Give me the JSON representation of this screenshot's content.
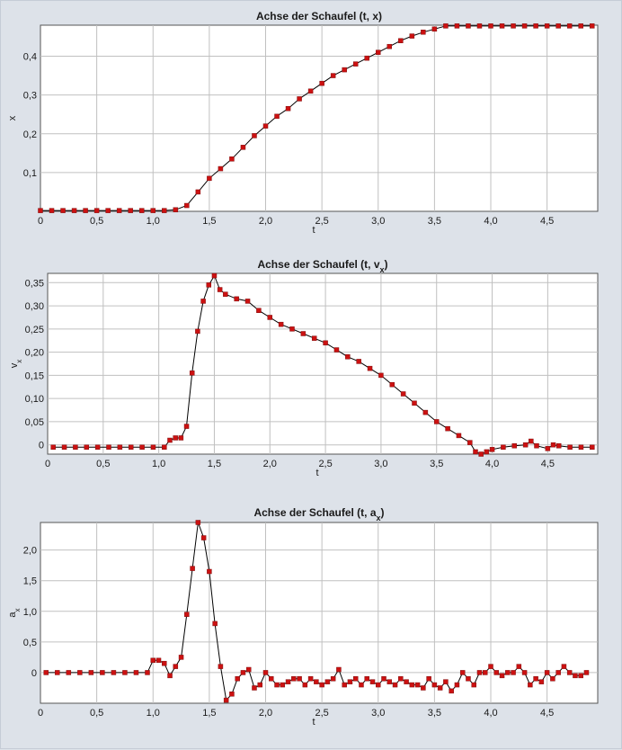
{
  "colors": {
    "background": "#dde2e9",
    "plot_background": "#ffffff",
    "grid": "#c0c0c0",
    "line": "#000000",
    "marker": "#cc1111"
  },
  "chart_data": [
    {
      "type": "line",
      "title": "Achse der Schaufel (t, x)",
      "xlabel": "t",
      "ylabel": "x",
      "xlim": [
        0,
        4.95
      ],
      "ylim": [
        0,
        0.48
      ],
      "xticks": [
        0,
        0.5,
        1.0,
        1.5,
        2.0,
        2.5,
        3.0,
        3.5,
        4.0,
        4.5
      ],
      "xtick_labels": [
        "0",
        "0,5",
        "1,0",
        "1,5",
        "2,0",
        "2,5",
        "3,0",
        "3,5",
        "4,0",
        "4,5"
      ],
      "yticks": [
        0.1,
        0.2,
        0.3,
        0.4
      ],
      "ytick_labels": [
        "0,1",
        "0,2",
        "0,3",
        "0,4"
      ],
      "grid": true,
      "x": [
        0,
        0.1,
        0.2,
        0.3,
        0.4,
        0.5,
        0.6,
        0.7,
        0.8,
        0.9,
        1.0,
        1.1,
        1.2,
        1.3,
        1.4,
        1.5,
        1.6,
        1.7,
        1.8,
        1.9,
        2.0,
        2.1,
        2.2,
        2.3,
        2.4,
        2.5,
        2.6,
        2.7,
        2.8,
        2.9,
        3.0,
        3.1,
        3.2,
        3.3,
        3.4,
        3.5,
        3.6,
        3.7,
        3.8,
        3.9,
        4.0,
        4.1,
        4.2,
        4.3,
        4.4,
        4.5,
        4.6,
        4.7,
        4.8,
        4.9
      ],
      "y": [
        0.002,
        0.002,
        0.002,
        0.002,
        0.002,
        0.002,
        0.002,
        0.002,
        0.002,
        0.002,
        0.002,
        0.002,
        0.004,
        0.015,
        0.05,
        0.085,
        0.11,
        0.135,
        0.165,
        0.195,
        0.22,
        0.245,
        0.265,
        0.29,
        0.31,
        0.33,
        0.35,
        0.365,
        0.38,
        0.395,
        0.41,
        0.425,
        0.44,
        0.452,
        0.462,
        0.47,
        0.478,
        0.478,
        0.478,
        0.478,
        0.478,
        0.478,
        0.478,
        0.478,
        0.478,
        0.478,
        0.478,
        0.478,
        0.478,
        0.478
      ]
    },
    {
      "type": "line",
      "title": "Achse der Schaufel (t, v",
      "title_sub": "x",
      "xlabel": "t",
      "ylabel": "v",
      "ylabel_sub": "x",
      "xlim": [
        0,
        4.95
      ],
      "ylim": [
        -0.02,
        0.37
      ],
      "xticks": [
        0,
        0.5,
        1.0,
        1.5,
        2.0,
        2.5,
        3.0,
        3.5,
        4.0,
        4.5
      ],
      "xtick_labels": [
        "0",
        "0,5",
        "1,0",
        "1,5",
        "2,0",
        "2,5",
        "3,0",
        "3,5",
        "4,0",
        "4,5"
      ],
      "yticks": [
        0,
        0.05,
        0.1,
        0.15,
        0.2,
        0.25,
        0.3,
        0.35
      ],
      "ytick_labels": [
        "0",
        "0,05",
        "0,10",
        "0,15",
        "0,20",
        "0,25",
        "0,30",
        "0,35"
      ],
      "grid": true,
      "x": [
        0.05,
        0.15,
        0.25,
        0.35,
        0.45,
        0.55,
        0.65,
        0.75,
        0.85,
        0.95,
        1.05,
        1.1,
        1.15,
        1.2,
        1.25,
        1.3,
        1.35,
        1.4,
        1.45,
        1.5,
        1.55,
        1.6,
        1.7,
        1.8,
        1.9,
        2.0,
        2.1,
        2.2,
        2.3,
        2.4,
        2.5,
        2.6,
        2.7,
        2.8,
        2.9,
        3.0,
        3.1,
        3.2,
        3.3,
        3.4,
        3.5,
        3.6,
        3.7,
        3.8,
        3.85,
        3.9,
        3.95,
        4.0,
        4.1,
        4.2,
        4.3,
        4.35,
        4.4,
        4.5,
        4.55,
        4.6,
        4.7,
        4.8,
        4.9
      ],
      "y": [
        -0.005,
        -0.005,
        -0.005,
        -0.005,
        -0.005,
        -0.005,
        -0.005,
        -0.005,
        -0.005,
        -0.005,
        -0.005,
        0.01,
        0.015,
        0.015,
        0.04,
        0.155,
        0.245,
        0.31,
        0.345,
        0.365,
        0.335,
        0.325,
        0.315,
        0.31,
        0.29,
        0.275,
        0.26,
        0.25,
        0.24,
        0.23,
        0.22,
        0.205,
        0.19,
        0.18,
        0.165,
        0.15,
        0.13,
        0.11,
        0.09,
        0.07,
        0.05,
        0.035,
        0.02,
        0.005,
        -0.015,
        -0.02,
        -0.015,
        -0.01,
        -0.005,
        -0.002,
        0.0,
        0.008,
        -0.002,
        -0.008,
        0.0,
        -0.002,
        -0.005,
        -0.005,
        -0.005
      ]
    },
    {
      "type": "line",
      "title": "Achse der Schaufel (t, a",
      "title_sub": "x",
      "xlabel": "t",
      "ylabel": "a",
      "ylabel_sub": "x",
      "xlim": [
        0,
        4.95
      ],
      "ylim": [
        -0.5,
        2.45
      ],
      "xticks": [
        0,
        0.5,
        1.0,
        1.5,
        2.0,
        2.5,
        3.0,
        3.5,
        4.0,
        4.5
      ],
      "xtick_labels": [
        "0",
        "0,5",
        "1,0",
        "1,5",
        "2,0",
        "2,5",
        "3,0",
        "3,5",
        "4,0",
        "4,5"
      ],
      "yticks": [
        0,
        0.5,
        1.0,
        1.5,
        2.0
      ],
      "ytick_labels": [
        "0",
        "0,5",
        "1,0",
        "1,5",
        "2,0"
      ],
      "grid": true,
      "x": [
        0.05,
        0.15,
        0.25,
        0.35,
        0.45,
        0.55,
        0.65,
        0.75,
        0.85,
        0.95,
        1.0,
        1.05,
        1.1,
        1.15,
        1.2,
        1.25,
        1.3,
        1.35,
        1.4,
        1.45,
        1.5,
        1.55,
        1.6,
        1.65,
        1.7,
        1.75,
        1.8,
        1.85,
        1.9,
        1.95,
        2.0,
        2.05,
        2.1,
        2.15,
        2.2,
        2.25,
        2.3,
        2.35,
        2.4,
        2.45,
        2.5,
        2.55,
        2.6,
        2.65,
        2.7,
        2.75,
        2.8,
        2.85,
        2.9,
        2.95,
        3.0,
        3.05,
        3.1,
        3.15,
        3.2,
        3.25,
        3.3,
        3.35,
        3.4,
        3.45,
        3.5,
        3.55,
        3.6,
        3.65,
        3.7,
        3.75,
        3.8,
        3.85,
        3.9,
        3.95,
        4.0,
        4.05,
        4.1,
        4.15,
        4.2,
        4.25,
        4.3,
        4.35,
        4.4,
        4.45,
        4.5,
        4.55,
        4.6,
        4.65,
        4.7,
        4.75,
        4.8,
        4.85
      ],
      "y": [
        0,
        0,
        0,
        0,
        0,
        0,
        0,
        0,
        0,
        0,
        0.2,
        0.2,
        0.15,
        -0.05,
        0.1,
        0.25,
        0.95,
        1.7,
        2.45,
        2.2,
        1.65,
        0.8,
        0.1,
        -0.45,
        -0.35,
        -0.1,
        0.0,
        0.05,
        -0.25,
        -0.2,
        0.0,
        -0.1,
        -0.2,
        -0.2,
        -0.15,
        -0.1,
        -0.1,
        -0.2,
        -0.1,
        -0.15,
        -0.2,
        -0.15,
        -0.1,
        0.05,
        -0.2,
        -0.15,
        -0.1,
        -0.2,
        -0.1,
        -0.15,
        -0.2,
        -0.1,
        -0.15,
        -0.2,
        -0.1,
        -0.15,
        -0.2,
        -0.2,
        -0.25,
        -0.1,
        -0.2,
        -0.25,
        -0.15,
        -0.3,
        -0.2,
        0.0,
        -0.1,
        -0.2,
        0.0,
        0.0,
        0.1,
        0.0,
        -0.05,
        0.0,
        0.0,
        0.1,
        0.0,
        -0.2,
        -0.1,
        -0.15,
        0.0,
        -0.1,
        0.0,
        0.1,
        0.0,
        -0.05,
        -0.05,
        0.0
      ]
    }
  ]
}
